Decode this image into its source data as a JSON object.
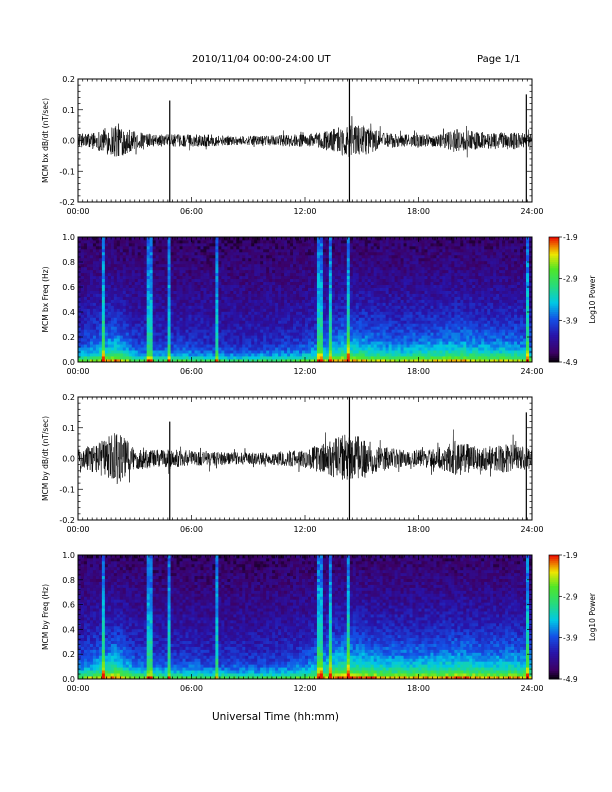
{
  "header": {
    "title": "2010/11/04  00:00-24:00 UT",
    "page": "Page 1/1",
    "xlabel": "Universal Time (hh:mm)"
  },
  "chart_data": [
    {
      "type": "line",
      "ylabel": "MCM bx dB/dt (nT/sec)",
      "xlim": [
        0,
        24
      ],
      "ylim": [
        -0.2,
        0.2
      ],
      "xticks": [
        "00:00",
        "06:00",
        "12:00",
        "18:00",
        "24:00"
      ],
      "yticks": [
        "0.2",
        "0.1",
        "0.0",
        "-0.1",
        "-0.2"
      ],
      "series": [
        {
          "x_hours": [
            0,
            1,
            2,
            3,
            4,
            5,
            6,
            7,
            8,
            9,
            10,
            11,
            12,
            13,
            14,
            15,
            16,
            17,
            18,
            19,
            20,
            21,
            22,
            23,
            24
          ],
          "envelope": [
            0.02,
            0.03,
            0.06,
            0.03,
            0.02,
            0.02,
            0.02,
            0.02,
            0.015,
            0.015,
            0.015,
            0.02,
            0.02,
            0.03,
            0.05,
            0.05,
            0.03,
            0.02,
            0.02,
            0.02,
            0.04,
            0.03,
            0.025,
            0.03,
            0.02
          ],
          "spikes": [
            [
              4.85,
              0.13,
              -0.2
            ],
            [
              14.35,
              0.2,
              -0.2
            ],
            [
              23.7,
              0.15,
              -0.2
            ]
          ]
        }
      ]
    },
    {
      "type": "heatmap",
      "ylabel": "MCM bx Freq (Hz)",
      "xlim": [
        0,
        24
      ],
      "ylim": [
        0.0,
        1.0
      ],
      "xticks": [
        "00:00",
        "06:00",
        "12:00",
        "18:00",
        "24:00"
      ],
      "yticks": [
        "1.0",
        "0.8",
        "0.6",
        "0.4",
        "0.2",
        "0.0"
      ],
      "colorbar": {
        "label": "Log10 Power",
        "ticks": [
          "-1.9",
          "-2.9",
          "-3.9",
          "-4.9"
        ],
        "range": [
          -4.9,
          -1.9
        ]
      },
      "vertical_lines_hours": [
        1.4,
        3.8,
        4.85,
        7.4,
        12.8,
        13.3,
        14.35,
        23.7
      ]
    },
    {
      "type": "line",
      "ylabel": "MCM by dB/dt (nT/sec)",
      "xlim": [
        0,
        24
      ],
      "ylim": [
        -0.2,
        0.2
      ],
      "xticks": [
        "00:00",
        "06:00",
        "12:00",
        "18:00",
        "24:00"
      ],
      "yticks": [
        "0.2",
        "0.1",
        "0.0",
        "-0.1",
        "-0.2"
      ],
      "series": [
        {
          "x_hours": [
            0,
            1,
            2,
            3,
            4,
            5,
            6,
            7,
            8,
            9,
            10,
            11,
            12,
            13,
            14,
            15,
            16,
            17,
            18,
            19,
            20,
            21,
            22,
            23,
            24
          ],
          "envelope": [
            0.03,
            0.05,
            0.09,
            0.04,
            0.03,
            0.03,
            0.025,
            0.025,
            0.02,
            0.02,
            0.02,
            0.025,
            0.03,
            0.05,
            0.08,
            0.07,
            0.04,
            0.03,
            0.03,
            0.03,
            0.06,
            0.04,
            0.04,
            0.05,
            0.03
          ],
          "spikes": [
            [
              4.85,
              0.12,
              -0.2
            ],
            [
              14.35,
              0.2,
              -0.2
            ],
            [
              23.7,
              0.15,
              -0.2
            ]
          ]
        }
      ]
    },
    {
      "type": "heatmap",
      "ylabel": "MCM by Freq (Hz)",
      "xlim": [
        0,
        24
      ],
      "ylim": [
        0.0,
        1.0
      ],
      "xticks": [
        "00:00",
        "06:00",
        "12:00",
        "18:00",
        "24:00"
      ],
      "yticks": [
        "1.0",
        "0.8",
        "0.6",
        "0.4",
        "0.2",
        "0.0"
      ],
      "colorbar": {
        "label": "Log10 Power",
        "ticks": [
          "-1.9",
          "-2.9",
          "-3.9",
          "-4.9"
        ],
        "range": [
          -4.9,
          -1.9
        ]
      },
      "vertical_lines_hours": [
        1.4,
        3.8,
        4.85,
        7.4,
        12.8,
        13.3,
        14.35,
        23.7
      ]
    }
  ]
}
